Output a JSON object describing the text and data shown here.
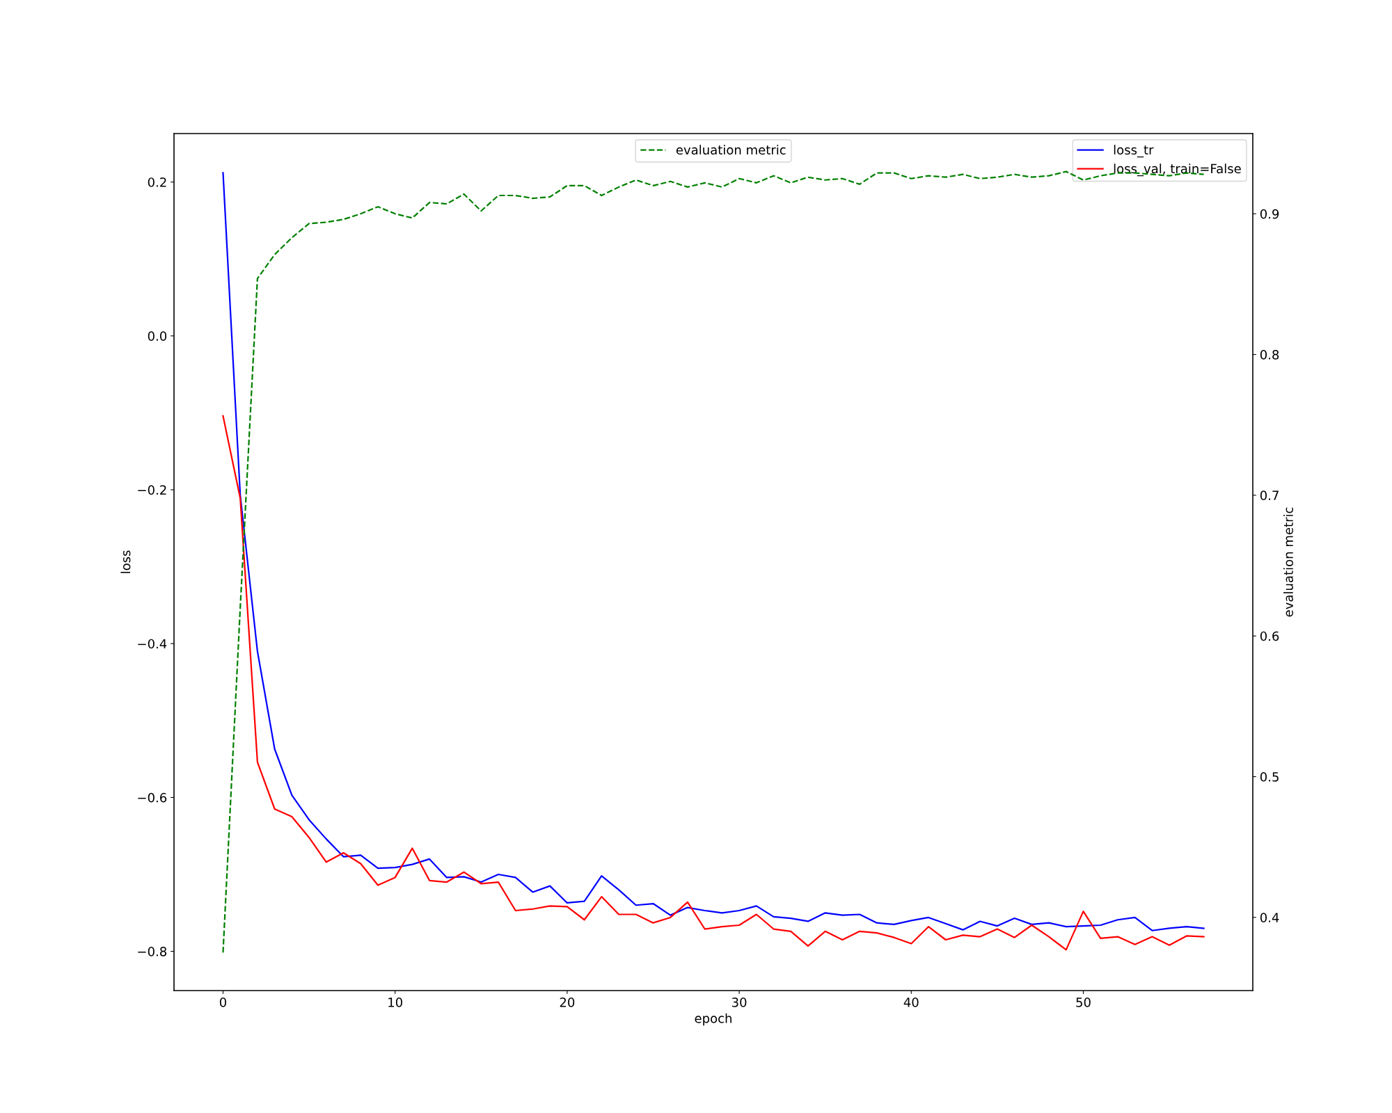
{
  "chart_data": {
    "type": "line",
    "xlabel": "epoch",
    "ylabel": "loss",
    "y2label": "evaluation metric",
    "x": [
      0,
      1,
      2,
      3,
      4,
      5,
      6,
      7,
      8,
      9,
      10,
      11,
      12,
      13,
      14,
      15,
      16,
      17,
      18,
      19,
      20,
      21,
      22,
      23,
      24,
      25,
      26,
      27,
      28,
      29,
      30,
      31,
      32,
      33,
      34,
      35,
      36,
      37,
      38,
      39,
      40,
      41,
      42,
      43,
      44,
      45,
      46,
      47,
      48,
      49,
      50,
      51,
      52,
      53,
      54,
      55,
      56,
      57
    ],
    "series": [
      {
        "name": "loss_tr",
        "color": "#0000ff",
        "line_style": "solid",
        "values": [
          0.212,
          -0.207,
          -0.41,
          -0.537,
          -0.597,
          -0.629,
          -0.654,
          -0.677,
          -0.675,
          -0.692,
          -0.691,
          -0.687,
          -0.68,
          -0.704,
          -0.703,
          -0.71,
          -0.7,
          -0.704,
          -0.723,
          -0.715,
          -0.737,
          -0.735,
          -0.702,
          -0.72,
          -0.74,
          -0.738,
          -0.753,
          -0.743,
          -0.747,
          -0.75,
          -0.747,
          -0.741,
          -0.755,
          -0.757,
          -0.761,
          -0.75,
          -0.753,
          -0.752,
          -0.763,
          -0.765,
          -0.76,
          -0.756,
          -0.764,
          -0.772,
          -0.761,
          -0.767,
          -0.757,
          -0.765,
          -0.763,
          -0.768,
          -0.767,
          -0.766,
          -0.759,
          -0.756,
          -0.773,
          -0.77,
          -0.768,
          -0.77
        ]
      },
      {
        "name": "loss_val, train=False",
        "color": "#ff0000",
        "line_style": "solid",
        "values": [
          -0.104,
          -0.211,
          -0.554,
          -0.615,
          -0.625,
          -0.652,
          -0.684,
          -0.672,
          -0.686,
          -0.714,
          -0.704,
          -0.666,
          -0.708,
          -0.71,
          -0.697,
          -0.712,
          -0.71,
          -0.747,
          -0.745,
          -0.741,
          -0.742,
          -0.759,
          -0.729,
          -0.752,
          -0.752,
          -0.763,
          -0.756,
          -0.736,
          -0.771,
          -0.768,
          -0.766,
          -0.752,
          -0.771,
          -0.774,
          -0.793,
          -0.774,
          -0.785,
          -0.774,
          -0.776,
          -0.782,
          -0.79,
          -0.768,
          -0.785,
          -0.779,
          -0.781,
          -0.771,
          -0.782,
          -0.766,
          -0.781,
          -0.798,
          -0.748,
          -0.783,
          -0.781,
          -0.791,
          -0.781,
          -0.792,
          -0.78,
          -0.781
        ]
      },
      {
        "name": "evaluation metric",
        "color": "#008000",
        "line_style": "dashed",
        "axis": "y2",
        "values": [
          0.375,
          0.62,
          0.854,
          0.871,
          0.883,
          0.893,
          0.894,
          0.896,
          0.9,
          0.905,
          0.9,
          0.897,
          0.908,
          0.907,
          0.914,
          0.902,
          0.913,
          0.913,
          0.911,
          0.912,
          0.92,
          0.92,
          0.913,
          0.919,
          0.924,
          0.92,
          0.923,
          0.919,
          0.922,
          0.919,
          0.925,
          0.922,
          0.927,
          0.922,
          0.926,
          0.924,
          0.925,
          0.921,
          0.929,
          0.929,
          0.925,
          0.927,
          0.926,
          0.928,
          0.925,
          0.926,
          0.928,
          0.926,
          0.927,
          0.93,
          0.924,
          0.927,
          0.929,
          0.929,
          0.928,
          0.927,
          0.929,
          0.928
        ]
      }
    ],
    "xlim": [
      -2.85,
      59.85
    ],
    "xticks": [
      0,
      10,
      20,
      30,
      40,
      50
    ],
    "ylim": [
      -0.851,
      0.263
    ],
    "yticks": [
      {
        "value": -0.8,
        "label": "−0.8"
      },
      {
        "value": -0.6,
        "label": "−0.6"
      },
      {
        "value": -0.4,
        "label": "−0.4"
      },
      {
        "value": -0.2,
        "label": "−0.2"
      },
      {
        "value": 0.0,
        "label": "0.0"
      },
      {
        "value": 0.2,
        "label": "0.2"
      }
    ],
    "y2lim": [
      0.348,
      0.957
    ],
    "y2ticks": [
      0.4,
      0.5,
      0.6,
      0.7,
      0.8,
      0.9
    ],
    "grid": false,
    "legend": "top right",
    "marker": "none"
  }
}
